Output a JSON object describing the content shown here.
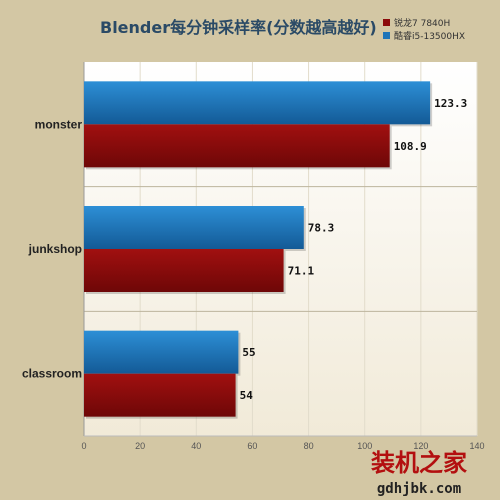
{
  "chart_data": {
    "type": "bar",
    "orientation": "horizontal",
    "title": "Blender每分钟采样率(分数越高越好)",
    "categories": [
      "monster",
      "junkshop",
      "classroom"
    ],
    "series": [
      {
        "name": "锐龙7 7840H",
        "color": "#8b0a0a",
        "values": [
          108.9,
          71.1,
          54
        ]
      },
      {
        "name": "酷睿i5-13500HX",
        "color": "#1e75b8",
        "values": [
          123.3,
          78.3,
          55
        ]
      }
    ],
    "value_labels": {
      "s0": [
        "108.9",
        "71.1",
        "54"
      ],
      "s1": [
        "123.3",
        "78.3",
        "55"
      ]
    },
    "xlim": [
      0,
      140
    ],
    "xticks": [
      0,
      20,
      40,
      60,
      80,
      100,
      120,
      140
    ],
    "xtick_labels": [
      "0",
      "20",
      "40",
      "60",
      "80",
      "100",
      "120",
      "140"
    ],
    "legend_position": "top-right",
    "grid": true
  },
  "watermark": {
    "title": "装机之家",
    "url": "gdhjbk.com"
  }
}
